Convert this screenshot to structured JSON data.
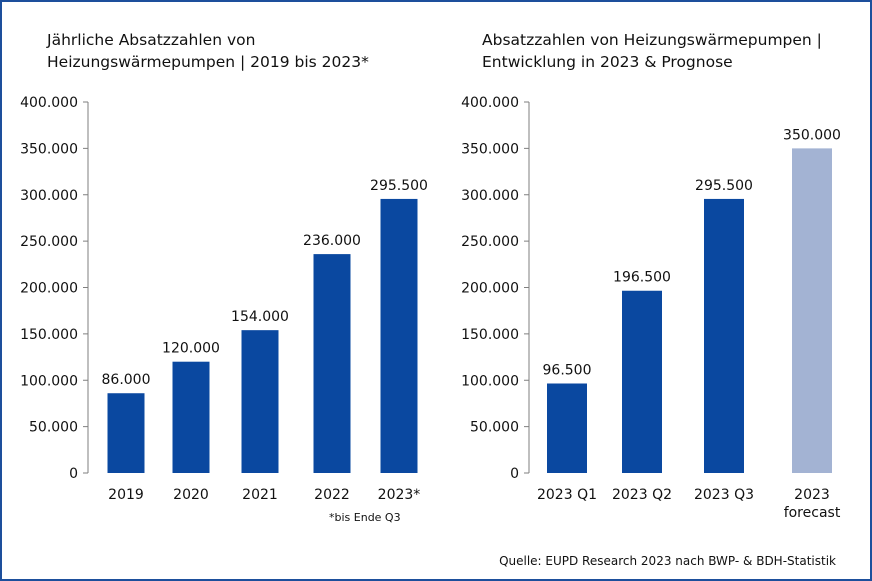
{
  "colors": {
    "bar": "#0a48a0",
    "forecast": "#a3b3d3",
    "border": "#1d4f9c",
    "axis": "#7f7f7f"
  },
  "chart_data": [
    {
      "type": "bar",
      "title": "Jährliche Absatzzahlen von Heizungswärmepumpen | 2019 bis 2023*",
      "title_lines": [
        "Jährliche Absatzzahlen von",
        "Heizungswärmepumpen | 2019 bis 2023*"
      ],
      "categories": [
        "2019",
        "2020",
        "2021",
        "2022",
        "2023*"
      ],
      "values": [
        86000,
        120000,
        154000,
        236000,
        295500
      ],
      "value_labels": [
        "86.000",
        "120.000",
        "154.000",
        "236.000",
        "295.500"
      ],
      "yticks": [
        "0",
        "50.000",
        "100.000",
        "150.000",
        "200.000",
        "250.000",
        "300.000",
        "350.000",
        "400.000"
      ],
      "ylim": [
        0,
        400000
      ],
      "footnote": "*bis Ende Q3"
    },
    {
      "type": "bar",
      "title": "Absatzzahlen von Heizungswärmepumpen | Entwicklung in 2023 & Prognose",
      "title_lines": [
        "Absatzzahlen von Heizungswärmepumpen |",
        "Entwicklung in 2023 & Prognose"
      ],
      "categories": [
        "2023 Q1",
        "2023 Q2",
        "2023 Q3",
        "2023 forecast"
      ],
      "category_lines": [
        [
          "2023 Q1"
        ],
        [
          "2023 Q2"
        ],
        [
          "2023 Q3"
        ],
        [
          "2023",
          "forecast"
        ]
      ],
      "values": [
        96500,
        196500,
        295500,
        350000
      ],
      "value_labels": [
        "96.500",
        "196.500",
        "295.500",
        "350.000"
      ],
      "forecast": [
        false,
        false,
        false,
        true
      ],
      "yticks": [
        "0",
        "50.000",
        "100.000",
        "150.000",
        "200.000",
        "250.000",
        "300.000",
        "350.000",
        "400.000"
      ],
      "ylim": [
        0,
        400000
      ]
    }
  ],
  "source": "Quelle: EUPD Research 2023 nach BWP- & BDH-Statistik"
}
